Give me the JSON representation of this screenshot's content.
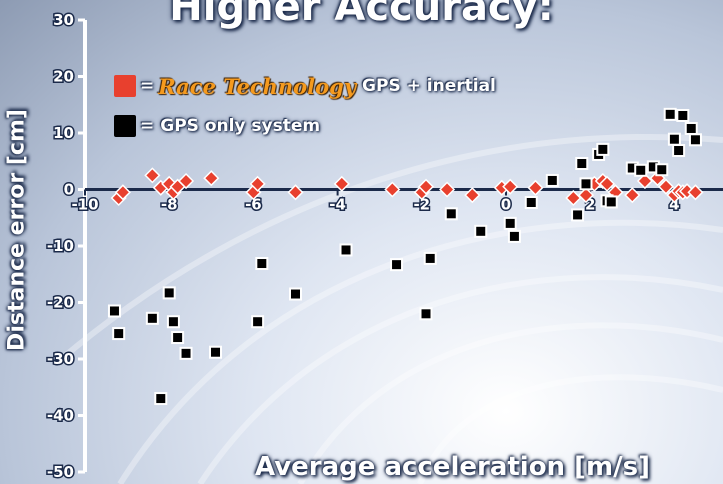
{
  "title": "Higher Accuracy:",
  "legend": {
    "items": [
      {
        "swatch_color": "#e8402e",
        "prefix": "=",
        "brand": "Race Technology",
        "text": "GPS + inertial"
      },
      {
        "swatch_color": "#000000",
        "prefix": "=",
        "brand": "",
        "text": "GPS only system"
      }
    ]
  },
  "chart_data": {
    "type": "scatter",
    "title": "Higher Accuracy:",
    "xlabel": "Average acceleration [m/s]",
    "ylabel": "Distance error [cm]",
    "xlim": [
      -10,
      4.8
    ],
    "ylim": [
      -50,
      30
    ],
    "x_ticks": [
      -10,
      -8,
      -6,
      -4,
      -2,
      0,
      2,
      4
    ],
    "y_ticks": [
      30,
      20,
      10,
      0,
      -10,
      -20,
      -30,
      -40,
      -50
    ],
    "grid": false,
    "legend_position": "top-left",
    "series": [
      {
        "name": "Race Technology GPS + inertial",
        "marker": "diamond",
        "color": "#e8402e",
        "x": [
          -9.2,
          -9.1,
          -8.4,
          -8.2,
          -8.0,
          -7.9,
          -7.8,
          -7.6,
          -7.0,
          -6.0,
          -5.9,
          -5.0,
          -3.9,
          -2.7,
          -2.0,
          -1.9,
          -1.4,
          -0.8,
          -0.1,
          0.1,
          0.7,
          1.6,
          1.9,
          2.1,
          2.3,
          2.4,
          2.6,
          3.0,
          3.3,
          3.6,
          3.8,
          4.0,
          4.1,
          4.2,
          4.3,
          4.5
        ],
        "y": [
          -1.5,
          -0.5,
          2.5,
          0.3,
          1.0,
          -0.5,
          0.5,
          1.5,
          2.0,
          -0.5,
          1.0,
          -0.5,
          1.0,
          0.0,
          -0.5,
          0.5,
          0.0,
          -1.0,
          0.3,
          0.5,
          0.3,
          -1.5,
          -1.0,
          1.0,
          1.5,
          1.0,
          -0.5,
          -1.0,
          1.5,
          2.0,
          0.5,
          -1.0,
          -0.3,
          -0.5,
          -0.3,
          -0.5
        ]
      },
      {
        "name": "GPS only system",
        "marker": "square",
        "color": "#000000",
        "x": [
          -9.3,
          -9.2,
          -8.4,
          -8.2,
          -8.0,
          -7.9,
          -7.8,
          -7.6,
          -6.9,
          -5.9,
          -5.8,
          -5.0,
          -3.8,
          -2.6,
          -1.9,
          -1.8,
          -1.3,
          -0.6,
          0.1,
          0.2,
          0.6,
          1.1,
          1.7,
          1.8,
          1.9,
          2.2,
          2.3,
          2.4,
          2.5,
          3.0,
          3.2,
          3.5,
          3.7,
          3.9,
          4.0,
          4.1,
          4.2,
          4.4,
          4.5
        ],
        "y": [
          -21.5,
          -25.5,
          -22.8,
          -37.0,
          -18.3,
          -23.4,
          -26.2,
          -29.0,
          -28.8,
          -23.4,
          -13.1,
          -18.5,
          -10.7,
          -13.3,
          -22.0,
          -12.2,
          -4.3,
          -7.4,
          -6.0,
          -8.3,
          -2.3,
          1.6,
          -4.5,
          4.6,
          1.0,
          6.2,
          7.1,
          -2.0,
          -2.2,
          3.8,
          3.4,
          4.0,
          3.5,
          13.3,
          8.9,
          6.9,
          13.1,
          10.8,
          8.8
        ]
      }
    ]
  }
}
